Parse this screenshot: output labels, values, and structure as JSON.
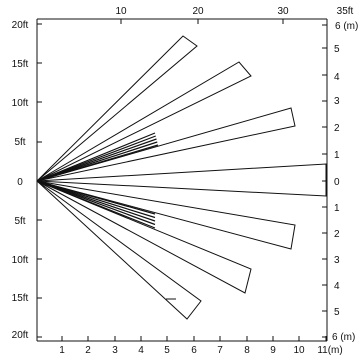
{
  "figure": {
    "top_axis": {
      "ticks": [
        "10",
        "20",
        "30"
      ],
      "end_label": "35ft"
    },
    "left_axis": {
      "labels": [
        "20ft",
        "15ft",
        "10ft",
        "5ft",
        "0",
        "5ft",
        "10ft",
        "15ft",
        "20ft"
      ]
    },
    "right_axis": {
      "labels": [
        "6 (m)",
        "5",
        "4",
        "3",
        "2",
        "1",
        "0",
        "1",
        "2",
        "3",
        "4",
        "5",
        "6 (m)"
      ]
    },
    "bottom_axis": {
      "labels": [
        "1",
        "2",
        "3",
        "4",
        "5",
        "6",
        "7",
        "8",
        "9",
        "10",
        "11(m)"
      ]
    }
  }
}
